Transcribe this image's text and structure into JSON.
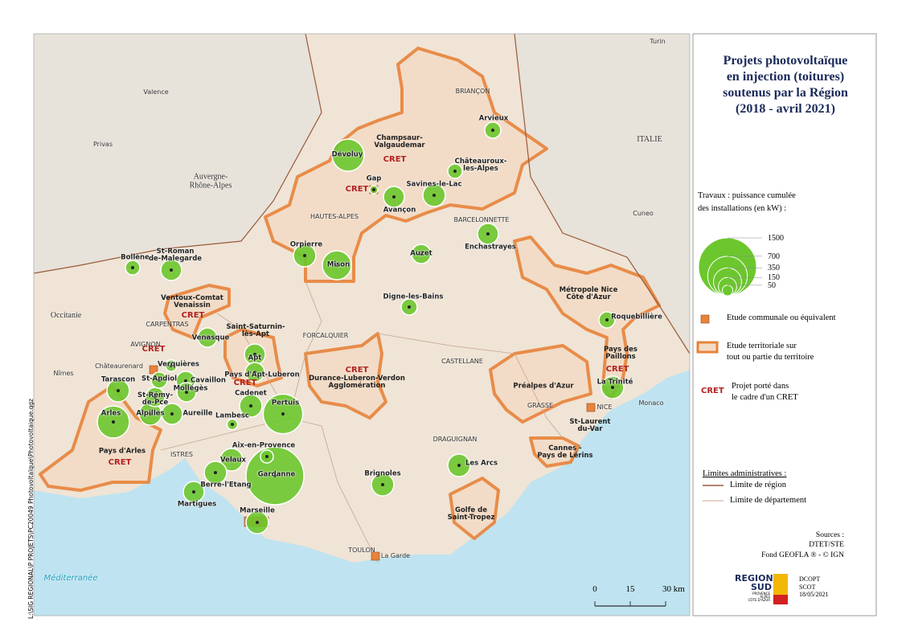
{
  "header": {
    "title": "Projets photovoltaïque\nen injection (toitures)\nsoutenus par la Région\n(2018 - avril 2021)"
  },
  "legend": {
    "size_title": "Travaux : puissance cumulée\ndes installations (en kW) :",
    "sizes": [
      1500,
      700,
      350,
      150,
      50
    ],
    "items": [
      "Etude communale ou équivalent",
      "Etude territoriale sur\ntout ou partie du territoire",
      "Projet porté dans\nle cadre d'un CRET"
    ],
    "cret": "CRET",
    "limits_title": "Limites administratives :",
    "limits": [
      "Limite de région",
      "Limite de département"
    ],
    "sources": "Sources :\nDTET/STE\nFond GEOFLA ® - © IGN"
  },
  "logo": {
    "name": "REGION\nSUD",
    "sub": "PROVENCE\nALPES\nCÔTE D'AZUR",
    "credit": "DCOPT\nSCOT\n18/05/2021"
  },
  "file_path": "L:\\SIG REGIONAL\\P PROJETS\\PC20049 Photovoltaïque\\Photovoltaique.qgz",
  "scale_bar": {
    "ticks": [
      0,
      15,
      {
        "value": 30,
        "label": "30 km"
      }
    ]
  },
  "sites": [
    {
      "label": "Dévoluy",
      "value": 460
    },
    {
      "label": "Gap",
      "value": 30
    },
    {
      "label": "Avançon",
      "value": 195
    },
    {
      "label": "Savines-le-Lac",
      "value": 225
    },
    {
      "label": "Arvieux",
      "value": 115
    },
    {
      "label": "Châteauroux-\nles-Alpes",
      "value": 95
    },
    {
      "label": "Enchastrayes",
      "value": 195
    },
    {
      "label": "Auzet",
      "value": 165
    },
    {
      "label": "Digne-les-Bains",
      "value": 115
    },
    {
      "label": "Orpierre",
      "value": 225
    },
    {
      "label": "Mison",
      "value": 375
    },
    {
      "label": "Bollène",
      "value": 95
    },
    {
      "label": "St-Roman\nde-Malegarde",
      "value": 195
    },
    {
      "label": "Venasque",
      "value": 165
    },
    {
      "label": "Apt",
      "value": 195
    },
    {
      "label": "Pays d'Apt-Luberon",
      "value": 165
    },
    {
      "label": "Cavaillon",
      "value": 165
    },
    {
      "label": "Verquières",
      "value": 60
    },
    {
      "label": "Tarascon",
      "value": 225
    },
    {
      "label": "St-Andiol",
      "value": 115
    },
    {
      "label": "St-Rémy-\nde-Pce",
      "value": 165
    },
    {
      "label": "Mollégès",
      "value": 165
    },
    {
      "label": "Alpilles",
      "value": 225
    },
    {
      "label": "Aureille",
      "value": 195
    },
    {
      "label": "Arles",
      "value": 460
    },
    {
      "label": "Cadenet",
      "value": 225
    },
    {
      "label": "Lambesc",
      "value": 50
    },
    {
      "label": "Pertuis",
      "value": 700
    },
    {
      "label": "Aix-en-Provence",
      "value": 75
    },
    {
      "label": "Velaux",
      "value": 225
    },
    {
      "label": "Berre-l'Etang",
      "value": 225
    },
    {
      "label": "Gardanne",
      "value": 1500
    },
    {
      "label": "Martigues",
      "value": 195
    },
    {
      "label": "Marseille",
      "value": 225
    },
    {
      "label": "Brignoles",
      "value": 225
    },
    {
      "label": "Les Arcs",
      "value": 225
    },
    {
      "label": "Roquebillière",
      "value": 115
    },
    {
      "label": "La Trinité",
      "value": 225
    }
  ],
  "places": [
    "Turin",
    "Valence",
    "Privas",
    "Cuneo",
    "ITALIE",
    "Auvergne-\nRhône-Alpes",
    "Occitanie",
    "Nîmes",
    "BRIANÇON",
    "BARCELONNETTE",
    "FORCALQUIER",
    "CASTELLANE",
    "CARPENTRAS",
    "AVIGNON",
    "ISTRES",
    "DRAGUIGNAN",
    "GRASSE",
    "NICE",
    "TOULON",
    "Monaco",
    "Méditerranée",
    "HAUTES-ALPES",
    "La Garde",
    "Châteaurenard"
  ],
  "territories": [
    "Champsaur-\nValgaudemar",
    "Ventoux-Comtat\nVenaissin",
    "Saint-Saturnin-\nlès-Apt",
    "Durance-Luberon-Verdon\nAgglomération",
    "Pays d'Arles",
    "Préalpes d'Azur",
    "Métropole Nice\nCôte d'Azur",
    "Pays des\nPaillons",
    "St-Laurent\ndu-Var",
    "Cannes -\nPays de Lérins",
    "Golfe de\nSaint-Tropez"
  ]
}
